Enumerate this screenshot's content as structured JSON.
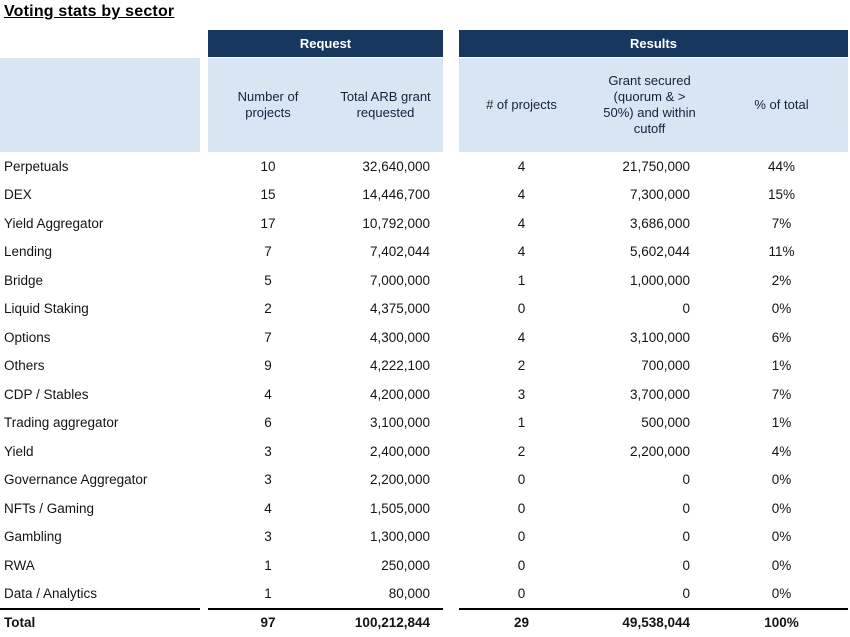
{
  "title": "Voting stats by sector",
  "colors": {
    "group_header_bg": "#17375e",
    "group_header_text": "#ffffff",
    "subheader_bg": "#d8e5f2",
    "body_text": "#141414"
  },
  "header_groups": {
    "request": "Request",
    "results": "Results"
  },
  "columns": {
    "sector": "",
    "request_projects": "Number of projects",
    "request_amount": "Total ARB grant requested",
    "results_projects": "# of projects",
    "results_grant": "Grant secured (quorum & > 50%) and within cutoff",
    "results_pct": "% of total"
  },
  "rows": [
    {
      "sector": "Perpetuals",
      "req_projects": "10",
      "req_amount": "32,640,000",
      "res_projects": "4",
      "res_grant": "21,750,000",
      "res_pct": "44%"
    },
    {
      "sector": "DEX",
      "req_projects": "15",
      "req_amount": "14,446,700",
      "res_projects": "4",
      "res_grant": "7,300,000",
      "res_pct": "15%"
    },
    {
      "sector": "Yield Aggregator",
      "req_projects": "17",
      "req_amount": "10,792,000",
      "res_projects": "4",
      "res_grant": "3,686,000",
      "res_pct": "7%"
    },
    {
      "sector": "Lending",
      "req_projects": "7",
      "req_amount": "7,402,044",
      "res_projects": "4",
      "res_grant": "5,602,044",
      "res_pct": "11%"
    },
    {
      "sector": "Bridge",
      "req_projects": "5",
      "req_amount": "7,000,000",
      "res_projects": "1",
      "res_grant": "1,000,000",
      "res_pct": "2%"
    },
    {
      "sector": "Liquid Staking",
      "req_projects": "2",
      "req_amount": "4,375,000",
      "res_projects": "0",
      "res_grant": "0",
      "res_pct": "0%"
    },
    {
      "sector": "Options",
      "req_projects": "7",
      "req_amount": "4,300,000",
      "res_projects": "4",
      "res_grant": "3,100,000",
      "res_pct": "6%"
    },
    {
      "sector": "Others",
      "req_projects": "9",
      "req_amount": "4,222,100",
      "res_projects": "2",
      "res_grant": "700,000",
      "res_pct": "1%"
    },
    {
      "sector": "CDP / Stables",
      "req_projects": "4",
      "req_amount": "4,200,000",
      "res_projects": "3",
      "res_grant": "3,700,000",
      "res_pct": "7%"
    },
    {
      "sector": "Trading aggregator",
      "req_projects": "6",
      "req_amount": "3,100,000",
      "res_projects": "1",
      "res_grant": "500,000",
      "res_pct": "1%"
    },
    {
      "sector": "Yield",
      "req_projects": "3",
      "req_amount": "2,400,000",
      "res_projects": "2",
      "res_grant": "2,200,000",
      "res_pct": "4%"
    },
    {
      "sector": "Governance Aggregator",
      "req_projects": "3",
      "req_amount": "2,200,000",
      "res_projects": "0",
      "res_grant": "0",
      "res_pct": "0%"
    },
    {
      "sector": "NFTs / Gaming",
      "req_projects": "4",
      "req_amount": "1,505,000",
      "res_projects": "0",
      "res_grant": "0",
      "res_pct": "0%"
    },
    {
      "sector": "Gambling",
      "req_projects": "3",
      "req_amount": "1,300,000",
      "res_projects": "0",
      "res_grant": "0",
      "res_pct": "0%"
    },
    {
      "sector": "RWA",
      "req_projects": "1",
      "req_amount": "250,000",
      "res_projects": "0",
      "res_grant": "0",
      "res_pct": "0%"
    },
    {
      "sector": "Data / Analytics",
      "req_projects": "1",
      "req_amount": "80,000",
      "res_projects": "0",
      "res_grant": "0",
      "res_pct": "0%"
    }
  ],
  "total": {
    "label": "Total",
    "req_projects": "97",
    "req_amount": "100,212,844",
    "res_projects": "29",
    "res_grant": "49,538,044",
    "res_pct": "100%"
  },
  "chart_data": {
    "type": "table",
    "title": "Voting stats by sector",
    "column_groups": [
      {
        "name": "Request",
        "columns": [
          "Number of projects",
          "Total ARB grant requested"
        ]
      },
      {
        "name": "Results",
        "columns": [
          "# of projects",
          "Grant secured (quorum & > 50%) and within cutoff",
          "% of total"
        ]
      }
    ],
    "rows": [
      [
        "Perpetuals",
        10,
        32640000,
        4,
        21750000,
        44
      ],
      [
        "DEX",
        15,
        14446700,
        4,
        7300000,
        15
      ],
      [
        "Yield Aggregator",
        17,
        10792000,
        4,
        3686000,
        7
      ],
      [
        "Lending",
        7,
        7402044,
        4,
        5602044,
        11
      ],
      [
        "Bridge",
        5,
        7000000,
        1,
        1000000,
        2
      ],
      [
        "Liquid Staking",
        2,
        4375000,
        0,
        0,
        0
      ],
      [
        "Options",
        7,
        4300000,
        4,
        3100000,
        6
      ],
      [
        "Others",
        9,
        4222100,
        2,
        700000,
        1
      ],
      [
        "CDP / Stables",
        4,
        4200000,
        3,
        3700000,
        7
      ],
      [
        "Trading aggregator",
        6,
        3100000,
        1,
        500000,
        1
      ],
      [
        "Yield",
        3,
        2400000,
        2,
        2200000,
        4
      ],
      [
        "Governance Aggregator",
        3,
        2200000,
        0,
        0,
        0
      ],
      [
        "NFTs / Gaming",
        4,
        1505000,
        0,
        0,
        0
      ],
      [
        "Gambling",
        3,
        1300000,
        0,
        0,
        0
      ],
      [
        "RWA",
        1,
        250000,
        0,
        0,
        0
      ],
      [
        "Data / Analytics",
        1,
        80000,
        0,
        0,
        0
      ]
    ],
    "total_row": [
      "Total",
      97,
      100212844,
      29,
      49538044,
      100
    ],
    "percent_unit": "%"
  }
}
